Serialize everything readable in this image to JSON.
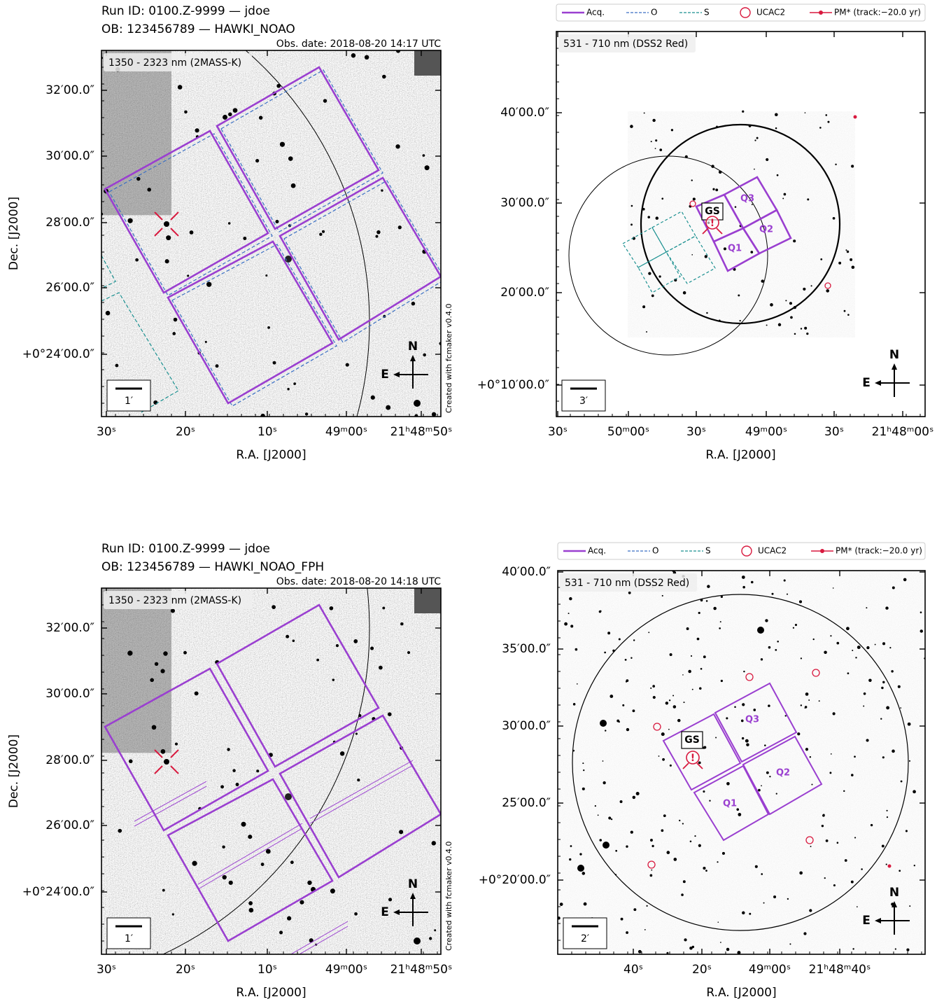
{
  "panels": [
    {
      "title_lines": [
        "Run ID: 0100.Z-9999 — jdoe",
        "OB: 123456789 — HAWKI_NOAO"
      ],
      "obs_date": "Obs. date: 2018-08-20 14:17 UTC",
      "band": "1350 - 2323 nm (2MASS-K)",
      "yticks": [
        "32′00.0″",
        "30′00.0″",
        "28′00.0″",
        "26′00.0″",
        "+0°24′00.0″"
      ],
      "xticks": [
        "30ˢ",
        "20ˢ",
        "10ˢ",
        "49ᵐ00ˢ",
        "21ʰ48ᵐ50ˢ"
      ],
      "xlabel": "R.A. [J2000]",
      "ylabel": "Dec. [J2000]",
      "scale": "1′",
      "compass": [
        "N",
        "E"
      ],
      "credit": "Created with fcmaker v0.4.0"
    },
    {
      "legend": [
        "Acq.",
        "O",
        "S",
        "UCAC2",
        "PM* (track:−20.0 yr)"
      ],
      "band": "531 - 710 nm (DSS2 Red)",
      "yticks": [
        "40′00.0″",
        "30′00.0″",
        "20′00.0″",
        "+0°10′00.0″"
      ],
      "xticks": [
        "30ˢ",
        "50ᵐ00ˢ",
        "30ˢ",
        "49ᵐ00ˢ",
        "30ˢ",
        "21ʰ48ᵐ00ˢ"
      ],
      "xlabel": "R.A. [J2000]",
      "scale": "3′",
      "compass": [
        "N",
        "E"
      ],
      "labels": [
        "GS",
        "Q1",
        "Q2",
        "Q3",
        "!"
      ]
    },
    {
      "title_lines": [
        "Run ID: 0100.Z-9999 — jdoe",
        "OB: 123456789 — HAWKI_NOAO_FPH"
      ],
      "obs_date": "Obs. date: 2018-08-20 14:18 UTC",
      "band": "1350 - 2323 nm (2MASS-K)",
      "yticks": [
        "32′00.0″",
        "30′00.0″",
        "28′00.0″",
        "26′00.0″",
        "+0°24′00.0″"
      ],
      "xticks": [
        "30ˢ",
        "20ˢ",
        "10ˢ",
        "49ᵐ00ˢ",
        "21ʰ48ᵐ50ˢ"
      ],
      "xlabel": "R.A. [J2000]",
      "ylabel": "Dec. [J2000]",
      "scale": "1′",
      "compass": [
        "N",
        "E"
      ],
      "credit": "Created with fcmaker v0.4.0"
    },
    {
      "legend": [
        "Acq.",
        "O",
        "S",
        "UCAC2",
        "PM* (track:−20.0 yr)"
      ],
      "band": "531 - 710 nm (DSS2 Red)",
      "yticks": [
        "40′00.0″",
        "35′00.0″",
        "30′00.0″",
        "25′00.0″",
        "+0°20′00.0″"
      ],
      "xticks": [
        "40ˢ",
        "20ˢ",
        "49ᵐ00ˢ",
        "21ʰ48ᵐ40ˢ"
      ],
      "xlabel": "R.A. [J2000]",
      "scale": "2′",
      "compass": [
        "N",
        "E"
      ],
      "labels": [
        "GS",
        "Q1",
        "Q2",
        "Q3",
        "!"
      ]
    }
  ]
}
